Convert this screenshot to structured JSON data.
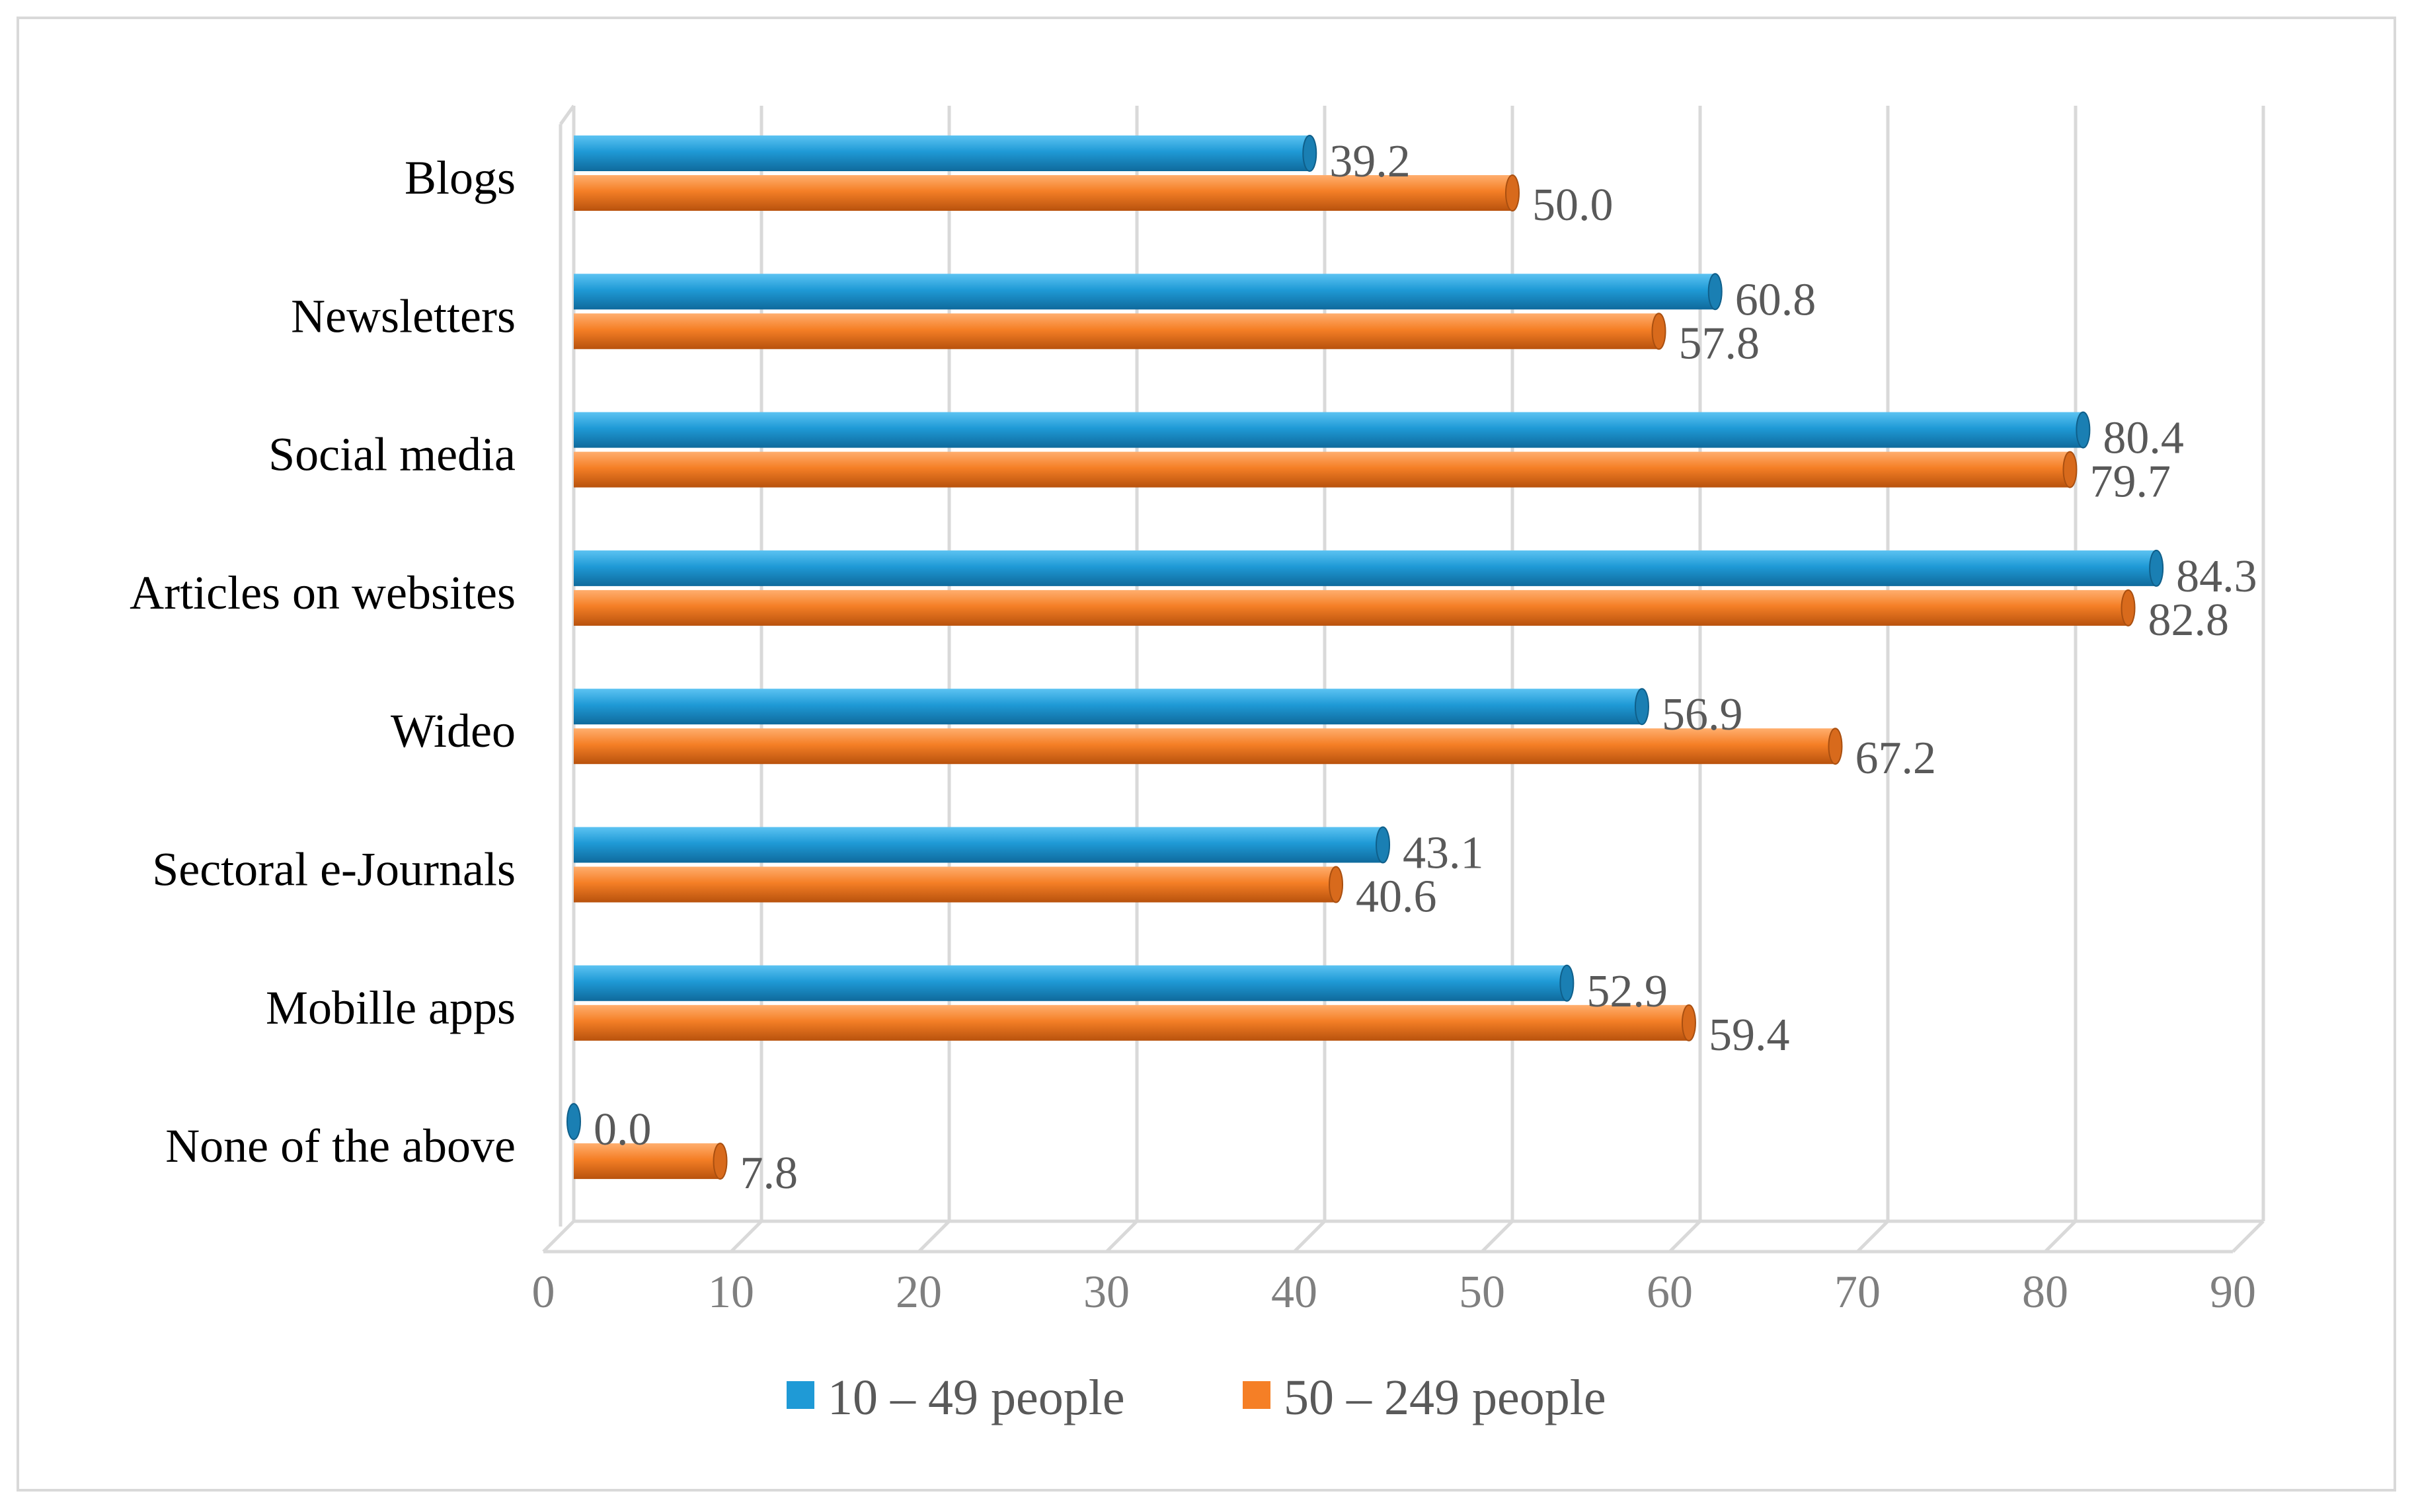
{
  "chart_data": {
    "type": "bar",
    "orientation": "horizontal",
    "style": "3d-cylinder",
    "title": "",
    "xlabel": "",
    "ylabel": "",
    "xlim": [
      0,
      90
    ],
    "ticks": [
      "0",
      "10",
      "20",
      "30",
      "40",
      "50",
      "60",
      "70",
      "80",
      "90"
    ],
    "grid": true,
    "legend_position": "bottom",
    "categories": [
      "Blogs",
      "Newsletters",
      "Social media",
      "Articles on websites",
      "Wideo",
      "Sectoral e-Journals",
      "Mobille apps",
      "None of the above"
    ],
    "series": [
      {
        "name": "10 – 49 people",
        "color": "#1f9ad6",
        "values": [
          39.2,
          60.8,
          80.4,
          84.3,
          56.9,
          43.1,
          52.9,
          0.0
        ],
        "labels": [
          "39.2",
          "60.8",
          "80.4",
          "84.3",
          "56.9",
          "43.1",
          "52.9",
          "0.0"
        ]
      },
      {
        "name": "50 – 249 people",
        "color": "#f57f26",
        "values": [
          50.0,
          57.8,
          79.7,
          82.8,
          67.2,
          40.6,
          59.4,
          7.8
        ],
        "labels": [
          "50.0",
          "57.8",
          "79.7",
          "82.8",
          "67.2",
          "40.6",
          "59.4",
          "7.8"
        ]
      }
    ]
  }
}
